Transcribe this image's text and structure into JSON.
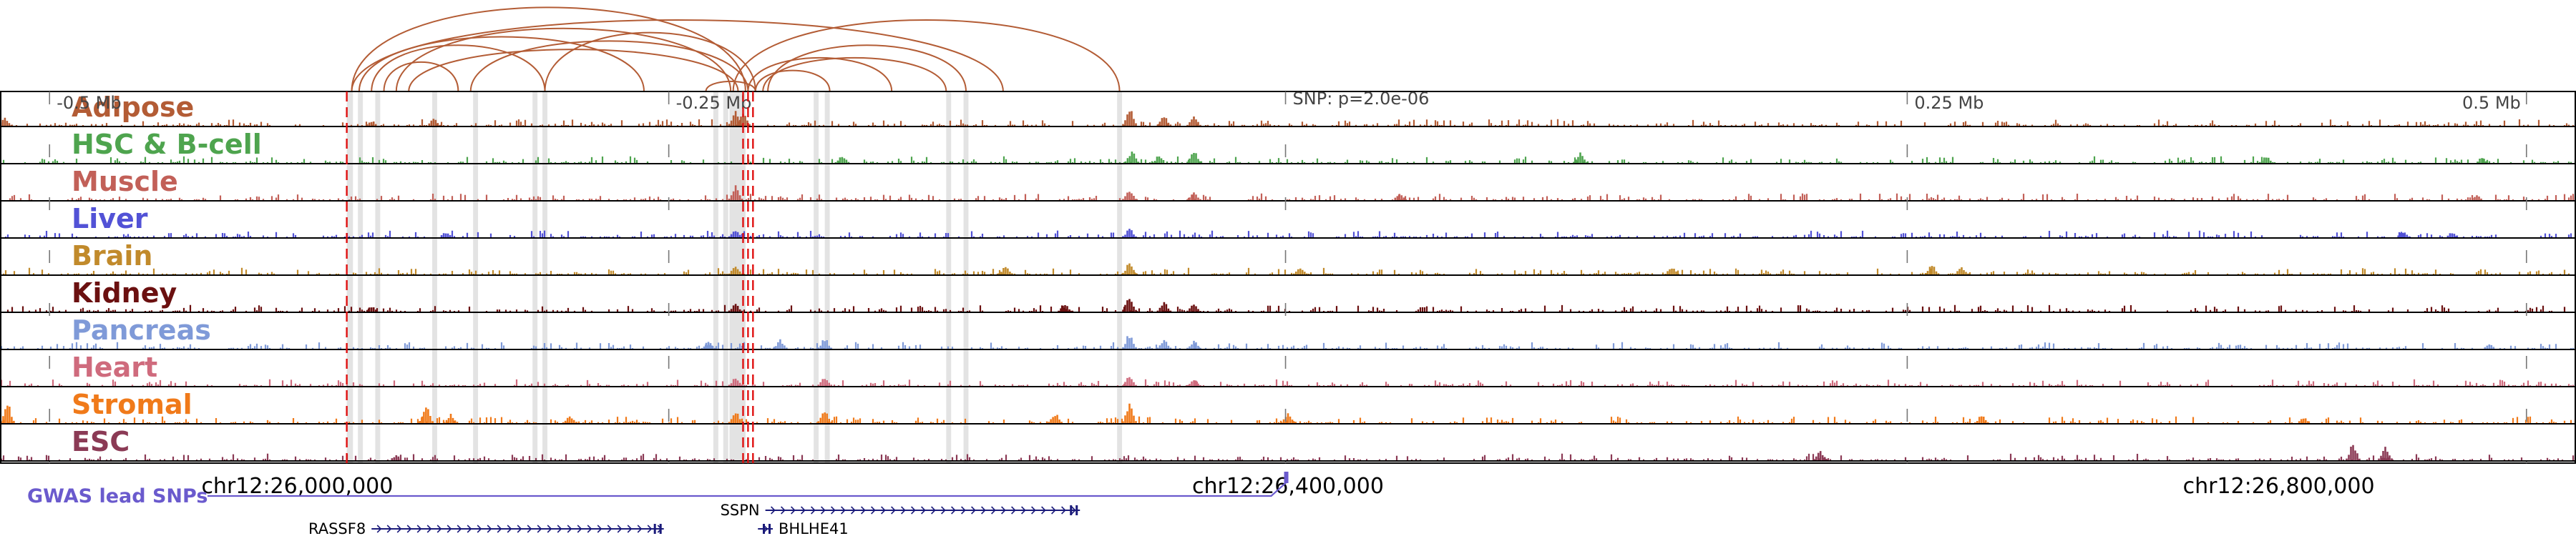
{
  "chart_data": {
    "type": "genome-browser-tracks",
    "region": {
      "start": 25880000,
      "end": 26920000
    },
    "lead_snp": {
      "position": 26399000,
      "label": "SNP: p=2.0e-06"
    },
    "offset_ticks": [
      {
        "position": 25900000,
        "label": "-0.5 Mb"
      },
      {
        "position": 26150000,
        "label": "-0.25 Mb"
      },
      {
        "position": 26650000,
        "label": "0.25 Mb"
      },
      {
        "position": 26900000,
        "label": "0.5 Mb"
      }
    ],
    "coordinate_ticks": [
      {
        "position": 26000000,
        "label": "chr12:26,000,000"
      },
      {
        "position": 26400000,
        "label": "chr12:26,400,000"
      },
      {
        "position": 26800000,
        "label": "chr12:26,800,000"
      }
    ],
    "red_dashed_lines": [
      26020000,
      26180000,
      26182000,
      26184000
    ],
    "highlight_regions": [
      [
        26020000,
        26022500
      ],
      [
        26024500,
        26026500
      ],
      [
        26031500,
        26033500
      ],
      [
        26054500,
        26056500
      ],
      [
        26071000,
        26073000
      ],
      [
        26095000,
        26097000
      ],
      [
        26099000,
        26101000
      ],
      [
        26168000,
        26170000
      ],
      [
        26172000,
        26174000
      ],
      [
        26174500,
        26181000
      ],
      [
        26208500,
        26210500
      ],
      [
        26213000,
        26215000
      ],
      [
        26262000,
        26264000
      ],
      [
        26269000,
        26271000
      ],
      [
        26331000,
        26333000
      ]
    ],
    "tracks": [
      {
        "name": "Adipose",
        "color": "#b35c35",
        "peaks": [
          [
            25882000,
            0.3
          ],
          [
            26030000,
            0.2
          ],
          [
            26055000,
            0.3
          ],
          [
            26177000,
            0.55
          ],
          [
            26180000,
            0.5
          ],
          [
            26336000,
            0.75
          ],
          [
            26350000,
            0.4
          ],
          [
            26362000,
            0.35
          ]
        ]
      },
      {
        "name": "HSC & B-cell",
        "color": "#4ea44e",
        "peaks": [
          [
            26220000,
            0.3
          ],
          [
            26337000,
            0.45
          ],
          [
            26348000,
            0.3
          ],
          [
            26362000,
            0.45
          ],
          [
            26518000,
            0.4
          ],
          [
            26795000,
            0.3
          ],
          [
            26882000,
            0.2
          ]
        ]
      },
      {
        "name": "Muscle",
        "color": "#c26058",
        "peaks": [
          [
            26177000,
            0.55
          ],
          [
            26336000,
            0.4
          ],
          [
            26362000,
            0.3
          ],
          [
            26445000,
            0.25
          ],
          [
            26880000,
            0.2
          ]
        ]
      },
      {
        "name": "Liver",
        "color": "#5252d6",
        "peaks": [
          [
            26060000,
            0.2
          ],
          [
            26177000,
            0.3
          ],
          [
            26336000,
            0.35
          ],
          [
            26850000,
            0.25
          ],
          [
            26870000,
            0.2
          ]
        ]
      },
      {
        "name": "Brain",
        "color": "#c18a2b",
        "peaks": [
          [
            26177000,
            0.35
          ],
          [
            26286000,
            0.35
          ],
          [
            26336000,
            0.45
          ],
          [
            26405000,
            0.3
          ],
          [
            26555000,
            0.3
          ],
          [
            26660000,
            0.4
          ],
          [
            26672000,
            0.3
          ]
        ]
      },
      {
        "name": "Kidney",
        "color": "#6b1010",
        "peaks": [
          [
            26030000,
            0.2
          ],
          [
            26177000,
            0.3
          ],
          [
            26310000,
            0.3
          ],
          [
            26336000,
            0.65
          ],
          [
            26350000,
            0.35
          ],
          [
            26362000,
            0.3
          ]
        ]
      },
      {
        "name": "Pancreas",
        "color": "#7f9ad8",
        "peaks": [
          [
            26166000,
            0.3
          ],
          [
            26195000,
            0.35
          ],
          [
            26213000,
            0.4
          ],
          [
            26336000,
            0.6
          ],
          [
            26350000,
            0.35
          ],
          [
            26362000,
            0.3
          ],
          [
            26885000,
            0.2
          ]
        ]
      },
      {
        "name": "Heart",
        "color": "#cf6b7d",
        "peaks": [
          [
            26177000,
            0.35
          ],
          [
            26213000,
            0.35
          ],
          [
            26336000,
            0.4
          ],
          [
            26362000,
            0.25
          ]
        ]
      },
      {
        "name": "Stromal",
        "color": "#f07a1a",
        "peaks": [
          [
            25883000,
            0.8
          ],
          [
            26052000,
            0.75
          ],
          [
            26062000,
            0.35
          ],
          [
            26110000,
            0.3
          ],
          [
            26177000,
            0.45
          ],
          [
            26213000,
            0.55
          ],
          [
            26306000,
            0.4
          ],
          [
            26336000,
            0.75
          ],
          [
            26400000,
            0.4
          ],
          [
            26680000,
            0.3
          ],
          [
            26810000,
            0.25
          ]
        ]
      },
      {
        "name": "ESC",
        "color": "#8b3a55",
        "peaks": [
          [
            26040000,
            0.2
          ],
          [
            26615000,
            0.35
          ],
          [
            26830000,
            0.65
          ],
          [
            26843000,
            0.55
          ]
        ]
      }
    ],
    "loops": [
      [
        26022000,
        26181000,
        1.0
      ],
      [
        26022000,
        26285000,
        0.85
      ],
      [
        26025000,
        26140000,
        0.65
      ],
      [
        26030000,
        26100000,
        0.55
      ],
      [
        26035000,
        26065000,
        0.35
      ],
      [
        26040000,
        26175000,
        0.75
      ],
      [
        26045000,
        26178000,
        0.5
      ],
      [
        26070000,
        26182000,
        0.6
      ],
      [
        26100000,
        26185000,
        0.7
      ],
      [
        26176000,
        26332000,
        0.85
      ],
      [
        26182000,
        26240000,
        0.4
      ],
      [
        26185000,
        26215000,
        0.25
      ],
      [
        26188000,
        26262000,
        0.4
      ],
      [
        26190000,
        26270000,
        0.55
      ],
      [
        26165000,
        26185000,
        0.12
      ]
    ],
    "gwas_track": {
      "label": "GWAS lead SNPs",
      "color": "#6a5acd"
    },
    "genes": [
      {
        "name": "RASSF8",
        "start": 26030000,
        "end": 26148000,
        "row": 1
      },
      {
        "name": "SSPN",
        "start": 26189000,
        "end": 26316000,
        "row": 0
      },
      {
        "name": "BHLHE41",
        "start": 26186000,
        "end": 26192000,
        "row": 1
      }
    ]
  }
}
